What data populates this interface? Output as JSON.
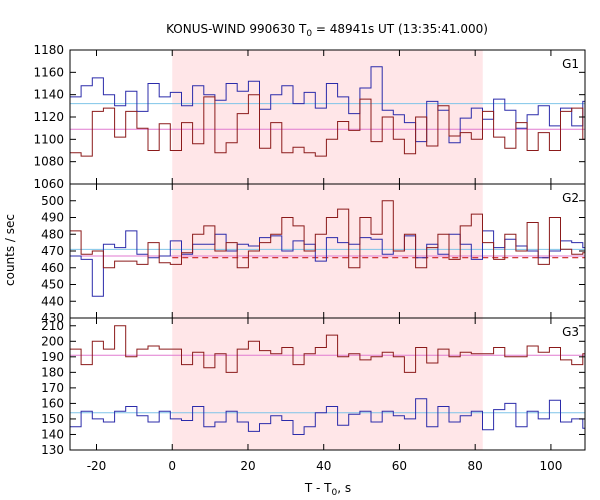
{
  "chart_data": {
    "type": "line",
    "title": "KONUS-WIND 990630 T",
    "title_sub": "0",
    "title_rest": " = 48941s UT (13:35:41.000)",
    "xlabel": "T - T",
    "xlabel_sub": "0",
    "xlabel_rest": ", s",
    "ylabel": "counts / sec",
    "xlim": [
      -27,
      109
    ],
    "xticks": [
      -20,
      0,
      20,
      40,
      60,
      80,
      100
    ],
    "shaded_interval": [
      0,
      82
    ],
    "colors": {
      "g1_series": "#2b2baa",
      "g2_series": "#8b1a1a",
      "g1_bg": "#7fc4e8",
      "g2_bg": "#e07ad0",
      "g2_fit": "#cc2020",
      "shade": "#ffe6e8"
    },
    "bin_edges_start": -27,
    "bin_width": 2.944,
    "panels": [
      {
        "label": "G1",
        "ylim": [
          1060,
          1180
        ],
        "yticks": [
          1060,
          1080,
          1100,
          1120,
          1140,
          1160,
          1180
        ],
        "series": [
          {
            "values": [
              1138,
              1148,
              1155,
              1140,
              1130,
              1143,
              1125,
              1150,
              1138,
              1142,
              1130,
              1148,
              1140,
              1135,
              1150,
              1143,
              1152,
              1127,
              1140,
              1148,
              1132,
              1142,
              1128,
              1150,
              1138,
              1123,
              1146,
              1165,
              1126,
              1122,
              1115,
              1098,
              1134,
              1126,
              1097,
              1119,
              1128,
              1118,
              1136,
              1126,
              1110,
              1122,
              1130,
              1112,
              1128,
              1112,
              1134,
              1145,
              1162,
              1166,
              1130,
              1156
            ]
          },
          {
            "values": [
              1088,
              1085,
              1125,
              1128,
              1102,
              1125,
              1110,
              1090,
              1114,
              1090,
              1115,
              1096,
              1138,
              1088,
              1097,
              1123,
              1140,
              1092,
              1115,
              1088,
              1093,
              1088,
              1085,
              1100,
              1116,
              1108,
              1136,
              1098,
              1120,
              1100,
              1087,
              1120,
              1094,
              1130,
              1103,
              1106,
              1100,
              1125,
              1102,
              1092,
              1115,
              1090,
              1106,
              1090,
              1125,
              1128,
              1100,
              1130,
              1094,
              1120,
              1096,
              1106,
              1125
            ]
          }
        ],
        "backgrounds": [
          1132,
          1109
        ]
      },
      {
        "label": "G2",
        "ylim": [
          430,
          510
        ],
        "yticks": [
          430,
          440,
          450,
          460,
          470,
          480,
          490,
          500
        ],
        "series": [
          {
            "values": [
              467,
              465,
              443,
              474,
              472,
              482,
              468,
              466,
              467,
              476,
              468,
              474,
              474,
              480,
              470,
              474,
              473,
              478,
              479,
              470,
              476,
              474,
              464,
              478,
              475,
              474,
              478,
              477,
              468,
              470,
              479,
              466,
              474,
              468,
              480,
              474,
              465,
              482,
              472,
              477,
              473,
              470,
              466,
              470,
              476,
              475,
              472,
              478,
              480,
              477,
              474
            ]
          },
          {
            "values": [
              482,
              468,
              470,
              460,
              464,
              464,
              462,
              475,
              463,
              462,
              469,
              480,
              485,
              470,
              475,
              460,
              470,
              475,
              480,
              490,
              485,
              470,
              480,
              490,
              495,
              460,
              490,
              480,
              500,
              470,
              480,
              460,
              472,
              480,
              465,
              485,
              492,
              475,
              465,
              480,
              470,
              487,
              462,
              490,
              471,
              468,
              469,
              472,
              466,
              464,
              467
            ]
          }
        ],
        "backgrounds": [
          471,
          467
        ],
        "fit_level": 466
      },
      {
        "label": "G3",
        "ylim": [
          130,
          215
        ],
        "yticks": [
          130,
          140,
          150,
          160,
          170,
          180,
          190,
          200,
          210
        ],
        "series": [
          {
            "values": [
              145,
              155,
              150,
              148,
              155,
              158,
              152,
              148,
              155,
              150,
              149,
              158,
              145,
              148,
              155,
              148,
              142,
              147,
              152,
              149,
              140,
              145,
              154,
              158,
              146,
              153,
              155,
              148,
              155,
              152,
              150,
              163,
              145,
              158,
              148,
              152,
              155,
              143,
              156,
              160,
              145,
              155,
              150,
              162,
              148,
              150,
              144,
              155,
              150,
              148,
              158,
              152,
              140
            ]
          },
          {
            "values": [
              195,
              185,
              200,
              195,
              210,
              190,
              195,
              197,
              195,
              195,
              185,
              193,
              183,
              192,
              180,
              195,
              200,
              194,
              192,
              196,
              185,
              192,
              196,
              204,
              190,
              192,
              188,
              190,
              193,
              190,
              180,
              196,
              186,
              195,
              190,
              193,
              192,
              192,
              196,
              190,
              190,
              197,
              193,
              196,
              188,
              185,
              192,
              190,
              193,
              182,
              184,
              184,
              177
            ]
          }
        ],
        "backgrounds": [
          154,
          191
        ]
      }
    ]
  }
}
